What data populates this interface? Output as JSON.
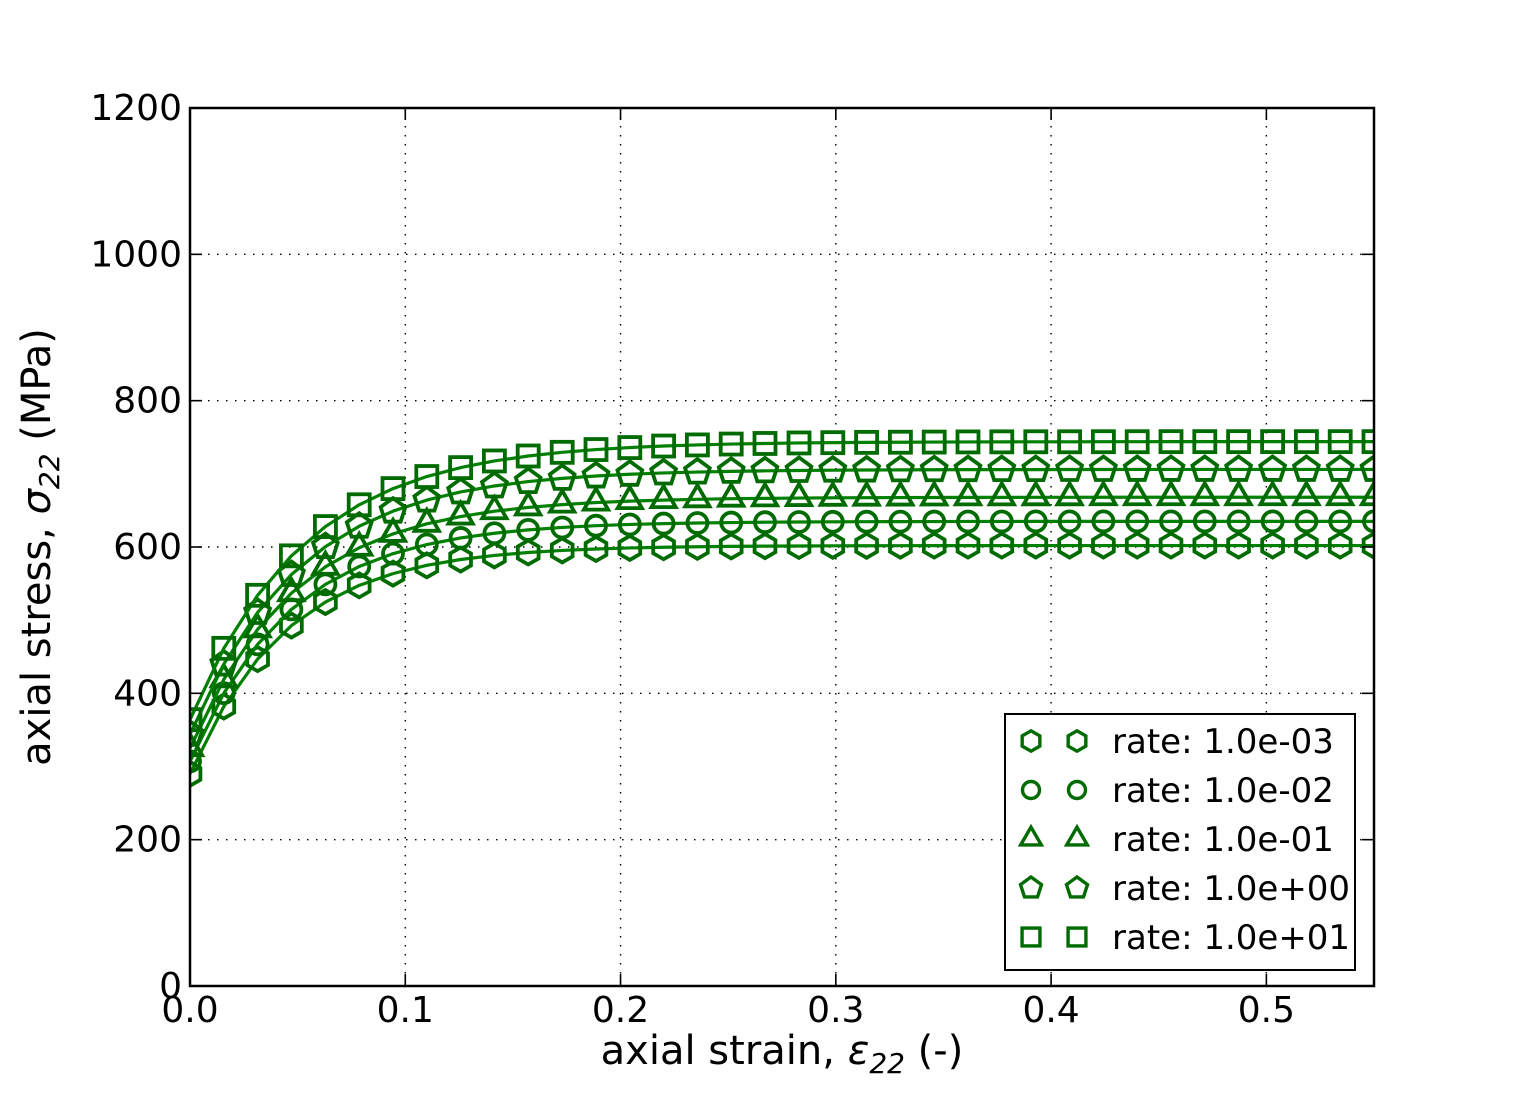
{
  "figure": {
    "background": "#ffffff",
    "text_color": "#000000",
    "frame_color": "#000000"
  },
  "chart_data": {
    "type": "line",
    "title": "",
    "xlabel": {
      "prefix": "axial strain, ",
      "symbol": "ε",
      "subscript": "22",
      "suffix": " (-)"
    },
    "ylabel": {
      "prefix": "axial stress, ",
      "symbol": "σ",
      "subscript": "22",
      "suffix": " (MPa)"
    },
    "xlim": [
      0,
      0.55
    ],
    "ylim": [
      0,
      1200
    ],
    "xticks": [
      0.0,
      0.1,
      0.2,
      0.3,
      0.4,
      0.5
    ],
    "xtick_labels": [
      "0.0",
      "0.1",
      "0.2",
      "0.3",
      "0.4",
      "0.5"
    ],
    "yticks": [
      0,
      200,
      400,
      600,
      800,
      1000,
      1200
    ],
    "ytick_labels": [
      "0",
      "200",
      "400",
      "600",
      "800",
      "1000",
      "1200"
    ],
    "grid": "dotted",
    "grid_color": "#000000",
    "legend_position": "lower right",
    "line_color": "#008000",
    "marker_color": "#006b00",
    "x": [
      0,
      0.0157,
      0.0314,
      0.0471,
      0.0629,
      0.0786,
      0.0943,
      0.11,
      0.1257,
      0.1414,
      0.1571,
      0.1729,
      0.1886,
      0.2043,
      0.22,
      0.2357,
      0.2514,
      0.2671,
      0.2829,
      0.2986,
      0.3143,
      0.33,
      0.3457,
      0.3614,
      0.3771,
      0.3929,
      0.4086,
      0.4243,
      0.44,
      0.4557,
      0.4714,
      0.4871,
      0.5029,
      0.5186,
      0.5343,
      0.55
    ],
    "series": [
      {
        "name": "rate: 1.0e-03",
        "marker": "hexagon",
        "yield_stress_mpa": 290,
        "saturation_stress_mpa": 602,
        "values": [
          290,
          382,
          446.8,
          492.6,
          524.8,
          547.6,
          563.6,
          574.9,
          582.9,
          588.5,
          592.5,
          595.3,
          597.3,
          598.7,
          599.7,
          600.3,
          600.8,
          601.2,
          601.4,
          601.6,
          601.7,
          601.8,
          601.9,
          601.9,
          601.9,
          602,
          602,
          602,
          602,
          602,
          602,
          602,
          602,
          602,
          602,
          602
        ]
      },
      {
        "name": "rate: 1.0e-02",
        "marker": "circle",
        "yield_stress_mpa": 307,
        "saturation_stress_mpa": 635,
        "values": [
          307,
          400.2,
          466.9,
          514.7,
          548.9,
          573.4,
          590.9,
          603.4,
          612.4,
          618.8,
          623.4,
          626.7,
          629.1,
          630.8,
          632,
          632.8,
          633.4,
          633.9,
          634.2,
          634.4,
          634.6,
          634.7,
          634.8,
          634.9,
          634.9,
          635,
          635,
          635,
          635,
          635,
          635,
          635,
          635,
          635,
          635,
          635
        ]
      },
      {
        "name": "rate: 1.0e-01",
        "marker": "triangle-up",
        "yield_stress_mpa": 325,
        "saturation_stress_mpa": 668,
        "values": [
          325,
          419.1,
          487.4,
          536.9,
          572.9,
          599,
          617.9,
          631.7,
          641.6,
          648.9,
          654.1,
          657.9,
          660.7,
          662.7,
          664.1,
          665.2,
          666,
          666.5,
          666.9,
          667.2,
          667.4,
          667.6,
          667.7,
          667.8,
          667.8,
          667.9,
          667.9,
          668,
          668,
          668,
          668,
          668,
          668,
          668,
          668,
          668
        ]
      },
      {
        "name": "rate: 1.0e+00",
        "marker": "pentagon",
        "yield_stress_mpa": 344,
        "saturation_stress_mpa": 706,
        "values": [
          344,
          440,
          510.5,
          562.4,
          600.5,
          628.4,
          649,
          664.1,
          675.2,
          683.4,
          689.4,
          693.8,
          697,
          699.4,
          701.2,
          702.4,
          703.4,
          704.1,
          704.6,
          705,
          705.2,
          705.4,
          705.6,
          705.7,
          705.8,
          705.8,
          705.9,
          705.9,
          706,
          706,
          706,
          706,
          706,
          706,
          706,
          706
        ]
      },
      {
        "name": "rate: 1.0e+01",
        "marker": "square",
        "yield_stress_mpa": 364,
        "saturation_stress_mpa": 744,
        "values": [
          364,
          461.5,
          534,
          587.9,
          627.9,
          657.7,
          679.8,
          696.3,
          708.5,
          717.6,
          724.4,
          729.4,
          733.2,
          735.9,
          738,
          739.5,
          740.7,
          741.5,
          742.2,
          742.6,
          743,
          743.2,
          743.4,
          743.6,
          743.7,
          743.8,
          743.8,
          743.9,
          743.9,
          744,
          744,
          744,
          744,
          744,
          744,
          744
        ]
      }
    ],
    "legend_labels": [
      "rate: 1.0e-03",
      "rate: 1.0e-02",
      "rate: 1.0e-01",
      "rate: 1.0e+00",
      "rate: 1.0e+01"
    ]
  }
}
